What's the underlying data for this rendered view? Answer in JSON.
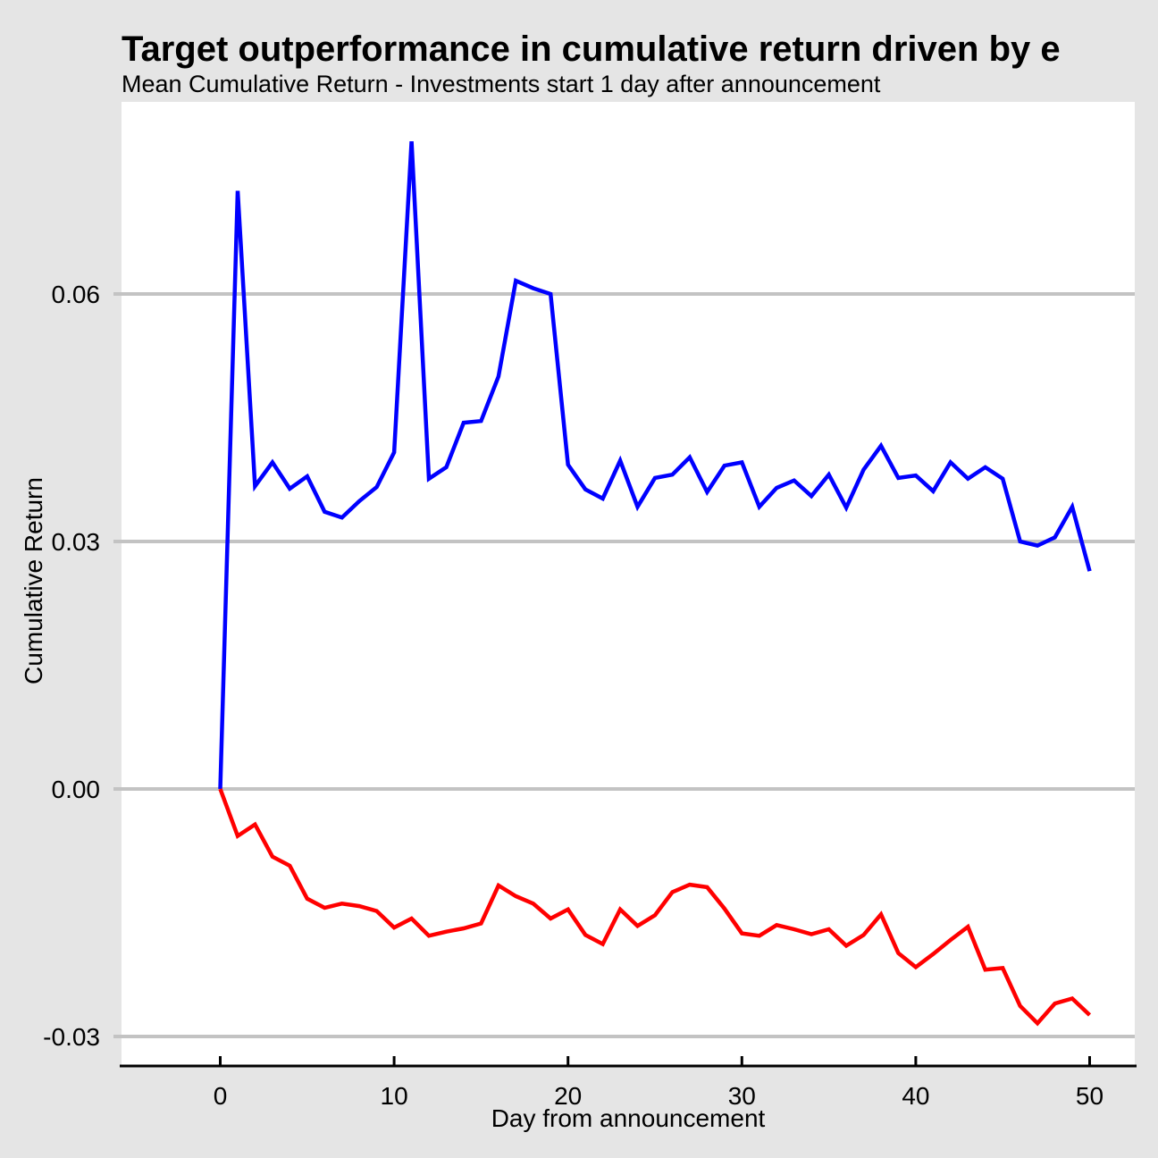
{
  "chart_data": {
    "type": "line",
    "title": "Target outperformance in cumulative return driven by e",
    "subtitle": "Mean Cumulative Return - Investments start 1 day after announcement",
    "xlabel": "Day from announcement",
    "ylabel": "Cumulative Return",
    "x": [
      0,
      1,
      2,
      3,
      4,
      5,
      6,
      7,
      8,
      9,
      10,
      11,
      12,
      13,
      14,
      15,
      16,
      17,
      18,
      19,
      20,
      21,
      22,
      23,
      24,
      25,
      26,
      27,
      28,
      29,
      30,
      31,
      32,
      33,
      34,
      35,
      36,
      37,
      38,
      39,
      40,
      41,
      42,
      43,
      44,
      45,
      46,
      47,
      48,
      49,
      50
    ],
    "series": [
      {
        "name": "blue",
        "color": "#0000FF",
        "values": [
          0.0,
          0.0725,
          0.0367,
          0.0396,
          0.0364,
          0.0379,
          0.0336,
          0.0329,
          0.0349,
          0.0366,
          0.0408,
          0.0785,
          0.0376,
          0.039,
          0.0444,
          0.0446,
          0.05,
          0.0616,
          0.0607,
          0.06,
          0.0393,
          0.0363,
          0.0352,
          0.0398,
          0.0342,
          0.0377,
          0.0381,
          0.0402,
          0.036,
          0.0392,
          0.0396,
          0.0342,
          0.0365,
          0.0374,
          0.0355,
          0.0381,
          0.0341,
          0.0387,
          0.0416,
          0.0377,
          0.038,
          0.0361,
          0.0396,
          0.0376,
          0.039,
          0.0376,
          0.03,
          0.0295,
          0.0305,
          0.0342,
          0.0264
        ]
      },
      {
        "name": "red",
        "color": "#FF0000",
        "values": [
          0.0,
          -0.0057,
          -0.0043,
          -0.0082,
          -0.0093,
          -0.0133,
          -0.0144,
          -0.0139,
          -0.0142,
          -0.0148,
          -0.0168,
          -0.0157,
          -0.0178,
          -0.0173,
          -0.0169,
          -0.0163,
          -0.0117,
          -0.013,
          -0.0139,
          -0.0157,
          -0.0146,
          -0.0177,
          -0.0188,
          -0.0146,
          -0.0166,
          -0.0153,
          -0.0125,
          -0.0116,
          -0.0119,
          -0.0145,
          -0.0175,
          -0.0178,
          -0.0165,
          -0.017,
          -0.0176,
          -0.017,
          -0.019,
          -0.0177,
          -0.0152,
          -0.0199,
          -0.0216,
          -0.02,
          -0.0183,
          -0.0167,
          -0.0219,
          -0.0217,
          -0.0263,
          -0.0284,
          -0.026,
          -0.0254,
          -0.0274
        ]
      }
    ],
    "xticks": [
      0,
      10,
      20,
      30,
      40,
      50
    ],
    "xtick_labels": [
      "0",
      "10",
      "20",
      "30",
      "40",
      "50"
    ],
    "yticks": [
      0.06,
      0.03,
      0.0,
      -0.03
    ],
    "ytick_labels": [
      "0.06",
      "0.03",
      "0.00",
      "-0.03"
    ],
    "xlim": [
      -5.6,
      52.7
    ],
    "ylim": [
      -0.0336,
      0.0833
    ],
    "grid": "horizontal-major-only",
    "legend": "none",
    "colors": {
      "figure_background": "#E5E5E5",
      "panel_background": "#FFFFFF",
      "gridline": "#C3C3C3",
      "axis_line": "#000000",
      "text": "#000000"
    }
  }
}
